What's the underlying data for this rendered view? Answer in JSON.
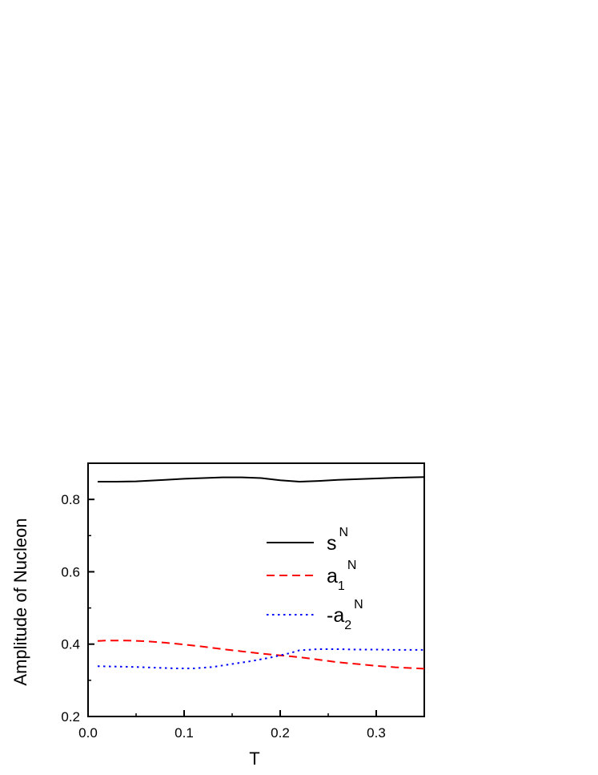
{
  "chart_data": {
    "type": "line",
    "xlabel": "T",
    "ylabel": "Amplitude of Nucleon",
    "xlim": [
      0.0,
      0.35
    ],
    "ylim": [
      0.2,
      0.9
    ],
    "xticks": [
      0.0,
      0.1,
      0.2,
      0.3
    ],
    "xtick_labels": [
      "0.0",
      "0.1",
      "0.2",
      "0.3"
    ],
    "yticks": [
      0.2,
      0.4,
      0.6,
      0.8
    ],
    "ytick_labels": [
      "0.2",
      "0.4",
      "0.6",
      "0.8"
    ],
    "grid": false,
    "legend_position": "right-middle",
    "series": [
      {
        "name": "s",
        "name_sub": "",
        "name_sup": "N",
        "color": "#000000",
        "dash": "solid",
        "x": [
          0.01,
          0.02,
          0.03,
          0.05,
          0.08,
          0.1,
          0.12,
          0.14,
          0.16,
          0.18,
          0.2,
          0.21,
          0.22,
          0.24,
          0.26,
          0.28,
          0.3,
          0.32,
          0.35
        ],
        "y": [
          0.849,
          0.849,
          0.849,
          0.85,
          0.854,
          0.857,
          0.859,
          0.861,
          0.861,
          0.859,
          0.853,
          0.851,
          0.849,
          0.851,
          0.854,
          0.856,
          0.858,
          0.86,
          0.862
        ]
      },
      {
        "name": "a",
        "name_sub": "1",
        "name_sup": "N",
        "color": "#ff0000",
        "dash": "dashed",
        "x": [
          0.01,
          0.02,
          0.04,
          0.06,
          0.08,
          0.1,
          0.12,
          0.14,
          0.16,
          0.18,
          0.2,
          0.22,
          0.24,
          0.26,
          0.28,
          0.3,
          0.32,
          0.35
        ],
        "y": [
          0.409,
          0.41,
          0.41,
          0.408,
          0.404,
          0.399,
          0.393,
          0.386,
          0.38,
          0.374,
          0.369,
          0.364,
          0.357,
          0.35,
          0.345,
          0.34,
          0.336,
          0.332
        ]
      },
      {
        "name": "-a",
        "name_sub": "2",
        "name_sup": "N",
        "color": "#0000ff",
        "dash": "dotted",
        "x": [
          0.01,
          0.03,
          0.05,
          0.07,
          0.09,
          0.11,
          0.13,
          0.15,
          0.17,
          0.19,
          0.21,
          0.22,
          0.24,
          0.26,
          0.28,
          0.3,
          0.32,
          0.35
        ],
        "y": [
          0.339,
          0.338,
          0.337,
          0.335,
          0.333,
          0.333,
          0.337,
          0.345,
          0.353,
          0.363,
          0.375,
          0.383,
          0.386,
          0.386,
          0.385,
          0.385,
          0.384,
          0.384
        ]
      }
    ]
  }
}
